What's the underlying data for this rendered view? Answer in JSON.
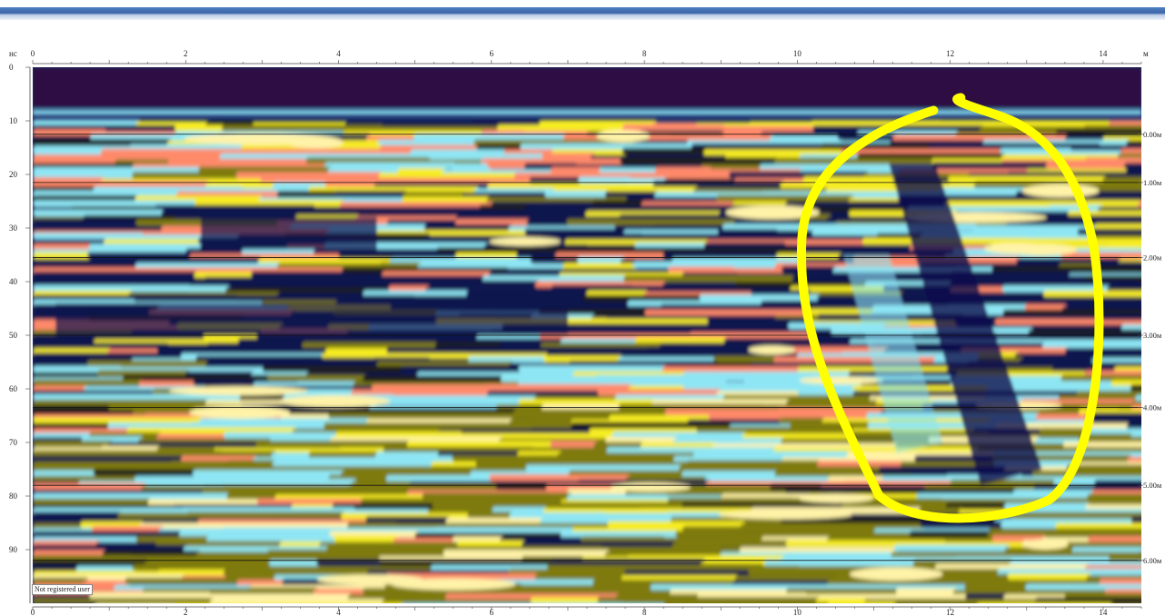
{
  "chart_data": {
    "type": "heatmap",
    "title": "",
    "xunit": "м",
    "yunit": "нс",
    "xlim": [
      0,
      14.5
    ],
    "ylim": [
      0,
      100
    ],
    "xticks": [
      "0",
      "2",
      "4",
      "6",
      "8",
      "10",
      "12",
      "14"
    ],
    "xticks_bottom": [
      "0",
      "2",
      "4",
      "6",
      "8",
      "10",
      "12",
      "14"
    ],
    "yticks": [
      "0",
      "10",
      "20",
      "30",
      "40",
      "50",
      "60",
      "70",
      "80",
      "90"
    ],
    "depth_scale": {
      "labels": [
        "0.00м",
        "1.00м",
        "2.00м",
        "3.00м",
        "4.00м",
        "5.00м",
        "6.00м"
      ],
      "time_ns": [
        12.5,
        21.5,
        35.5,
        50,
        63.5,
        78,
        92
      ]
    },
    "annotation": {
      "type": "freehand-loop",
      "color": "#ffff00",
      "x_range_m": [
        10,
        14
      ],
      "time_range_ns": [
        5,
        85
      ]
    },
    "palette": [
      "#2a0c40",
      "#10124e",
      "#1a4b82",
      "#8ee6f4",
      "#e6edf0",
      "#f6ec24",
      "#ff8a6a",
      "#fff3a8",
      "#7e7a10",
      "#1a1a1a"
    ]
  },
  "watermark": "Not registered user"
}
